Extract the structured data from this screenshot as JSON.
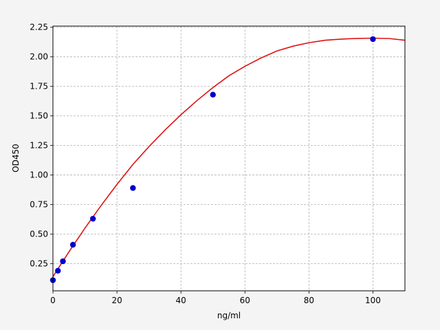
{
  "chart_data": {
    "type": "scatter",
    "xlabel": "ng/ml",
    "ylabel": "OD450",
    "xlim": [
      0,
      110
    ],
    "ylim": [
      0.02,
      2.26
    ],
    "grid": true,
    "xticks": [
      0,
      20,
      40,
      60,
      80,
      100
    ],
    "xtick_labels": [
      "0",
      "20",
      "40",
      "60",
      "80",
      "100"
    ],
    "yticks": [
      0.25,
      0.5,
      0.75,
      1.0,
      1.25,
      1.5,
      1.75,
      2.0,
      2.25
    ],
    "ytick_labels": [
      "0.25",
      "0.50",
      "0.75",
      "1.00",
      "1.25",
      "1.50",
      "1.75",
      "2.00",
      "2.25"
    ],
    "series": [
      {
        "kind": "points",
        "color": "#0000cc",
        "x": [
          0,
          1.56,
          3.12,
          6.25,
          12.5,
          25,
          50,
          100
        ],
        "y": [
          0.11,
          0.19,
          0.27,
          0.41,
          0.63,
          0.89,
          1.68,
          2.15
        ]
      },
      {
        "kind": "fit-curve",
        "color": "#dd1111",
        "x": [
          0,
          5,
          10,
          15,
          20,
          25,
          30,
          35,
          40,
          45,
          50,
          55,
          60,
          65,
          70,
          75,
          80,
          85,
          90,
          95,
          100,
          105,
          110
        ],
        "y": [
          0.14,
          0.35,
          0.55,
          0.74,
          0.92,
          1.09,
          1.24,
          1.38,
          1.51,
          1.63,
          1.74,
          1.84,
          1.92,
          1.99,
          2.05,
          2.09,
          2.12,
          2.14,
          2.15,
          2.156,
          2.158,
          2.155,
          2.14
        ]
      }
    ]
  }
}
